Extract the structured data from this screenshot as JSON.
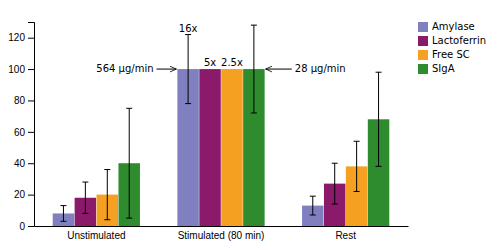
{
  "chart_data": {
    "type": "bar",
    "categories": [
      "Unstimulated",
      "Stimulated (80 min)",
      "Rest"
    ],
    "series": [
      {
        "name": "Amylase",
        "color": "#8080c0",
        "values": [
          8,
          100,
          13
        ],
        "errors": [
          5,
          22,
          6
        ]
      },
      {
        "name": "Lactoferrin",
        "color": "#8b1a6b",
        "values": [
          18,
          100,
          27
        ],
        "errors": [
          10,
          null,
          13
        ]
      },
      {
        "name": "Free SC",
        "color": "#f5a020",
        "values": [
          20,
          100,
          38
        ],
        "errors": [
          16,
          null,
          16
        ]
      },
      {
        "name": "SIgA",
        "color": "#2e8b2e",
        "values": [
          40,
          100,
          68
        ],
        "errors": [
          35,
          28,
          30
        ]
      }
    ],
    "annotations": [
      {
        "text": "16x",
        "category": "Stimulated (80 min)",
        "series": "Amylase"
      },
      {
        "text": "5x",
        "category": "Stimulated (80 min)",
        "series": "Lactoferrin"
      },
      {
        "text": "2.5x",
        "category": "Stimulated (80 min)",
        "series": "Free SC"
      },
      {
        "text": "564 μg/min",
        "category": "Stimulated (80 min)",
        "series": "Amylase",
        "arrow": "left"
      },
      {
        "text": "28 μg/min",
        "category": "Stimulated (80 min)",
        "series": "SIgA",
        "arrow": "right"
      }
    ],
    "ylim": [
      0,
      130
    ],
    "yticks": [
      0,
      20,
      40,
      60,
      80,
      100,
      120
    ],
    "grid": false,
    "legend": "upper right"
  }
}
